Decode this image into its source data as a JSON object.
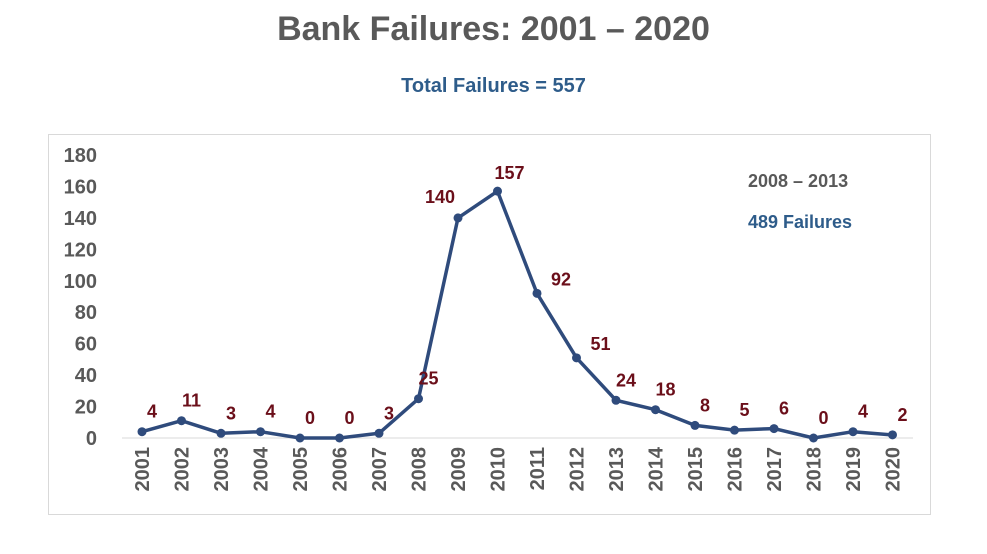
{
  "chart_data": {
    "type": "line",
    "title": "Bank Failures:  2001 – 2020",
    "subtitle": "Total Failures = 557",
    "x": [
      "2001",
      "2002",
      "2003",
      "2004",
      "2005",
      "2006",
      "2007",
      "2008",
      "2009",
      "2010",
      "2011",
      "2012",
      "2013",
      "2014",
      "2015",
      "2016",
      "2017",
      "2018",
      "2019",
      "2020"
    ],
    "series": [
      {
        "values": [
          4,
          11,
          3,
          4,
          0,
          0,
          3,
          25,
          140,
          157,
          92,
          51,
          24,
          18,
          8,
          5,
          6,
          0,
          4,
          2
        ]
      }
    ],
    "ylim": [
      0,
      180
    ],
    "yticks": [
      0,
      20,
      40,
      60,
      80,
      100,
      120,
      140,
      160,
      180
    ],
    "annotations": [
      "2008 – 2013",
      "489 Failures"
    ],
    "grid": false,
    "line_color": "#2F4B7C",
    "label_color": "#6B0F1A"
  }
}
